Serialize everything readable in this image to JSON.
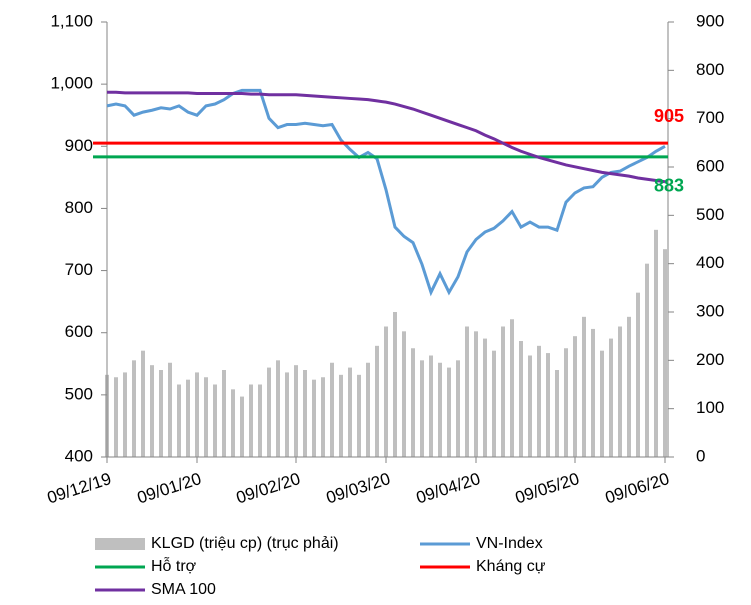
{
  "chart_data": {
    "type": "combo",
    "categories": [
      "09/12/19",
      null,
      null,
      null,
      null,
      null,
      null,
      null,
      null,
      null,
      "09/01/20",
      null,
      null,
      null,
      null,
      null,
      null,
      null,
      null,
      null,
      null,
      "09/02/20",
      null,
      null,
      null,
      null,
      null,
      null,
      null,
      null,
      null,
      "09/03/20",
      null,
      null,
      null,
      null,
      null,
      null,
      null,
      null,
      null,
      "09/04/20",
      null,
      null,
      null,
      null,
      null,
      null,
      null,
      null,
      null,
      null,
      "09/05/20",
      null,
      null,
      null,
      null,
      null,
      null,
      null,
      null,
      null,
      "09/06/20"
    ],
    "series": [
      {
        "name": "KLGD (triệu cp) (trục phải)",
        "type": "bar",
        "axis": "y2",
        "color": "#bfbfbf",
        "values": [
          170,
          165,
          175,
          200,
          220,
          190,
          180,
          195,
          150,
          160,
          175,
          165,
          150,
          180,
          140,
          125,
          150,
          150,
          185,
          200,
          175,
          190,
          180,
          160,
          165,
          195,
          170,
          185,
          170,
          195,
          230,
          270,
          300,
          260,
          225,
          200,
          210,
          195,
          185,
          200,
          270,
          260,
          245,
          220,
          270,
          285,
          240,
          210,
          230,
          215,
          180,
          225,
          250,
          290,
          265,
          220,
          245,
          270,
          290,
          340,
          400,
          470,
          430
        ]
      },
      {
        "name": "VN-Index",
        "type": "line",
        "color": "#5b9bd5",
        "values": [
          965,
          968,
          965,
          950,
          955,
          958,
          962,
          960,
          965,
          955,
          950,
          965,
          968,
          975,
          985,
          990,
          990,
          990,
          945,
          930,
          935,
          935,
          937,
          935,
          933,
          935,
          910,
          895,
          882,
          890,
          880,
          830,
          770,
          755,
          745,
          710,
          665,
          695,
          665,
          690,
          730,
          750,
          762,
          768,
          780,
          795,
          770,
          778,
          770,
          770,
          765,
          810,
          825,
          833,
          835,
          850,
          858,
          860,
          868,
          875,
          882,
          892,
          900
        ]
      },
      {
        "name": "Hỗ trợ",
        "type": "hline",
        "color": "#00a651",
        "value": 883
      },
      {
        "name": "Kháng cự",
        "type": "hline",
        "color": "#ff0000",
        "value": 905
      },
      {
        "name": "SMA 100",
        "type": "line",
        "color": "#7030a0",
        "values": [
          987,
          987,
          986,
          986,
          986,
          986,
          986,
          986,
          986,
          986,
          985,
          985,
          985,
          985,
          985,
          985,
          984,
          984,
          983,
          983,
          983,
          983,
          982,
          981,
          980,
          979,
          978,
          977,
          976,
          975,
          973,
          971,
          968,
          964,
          960,
          955,
          950,
          945,
          940,
          935,
          930,
          925,
          918,
          912,
          905,
          898,
          892,
          887,
          882,
          878,
          874,
          870,
          867,
          864,
          861,
          858,
          856,
          854,
          852,
          849,
          847,
          845,
          843
        ]
      }
    ],
    "ylim": [
      400,
      1100
    ],
    "yticks": [
      400,
      500,
      600,
      700,
      800,
      {
        "value": 900,
        "label": "900"
      },
      {
        "value": 1000,
        "label": "1,000"
      },
      {
        "value": 1100,
        "label": "1,100"
      }
    ],
    "y2lim": [
      0,
      900
    ],
    "y2ticks": [
      0,
      100,
      200,
      300,
      400,
      500,
      600,
      700,
      800,
      900
    ]
  }
}
